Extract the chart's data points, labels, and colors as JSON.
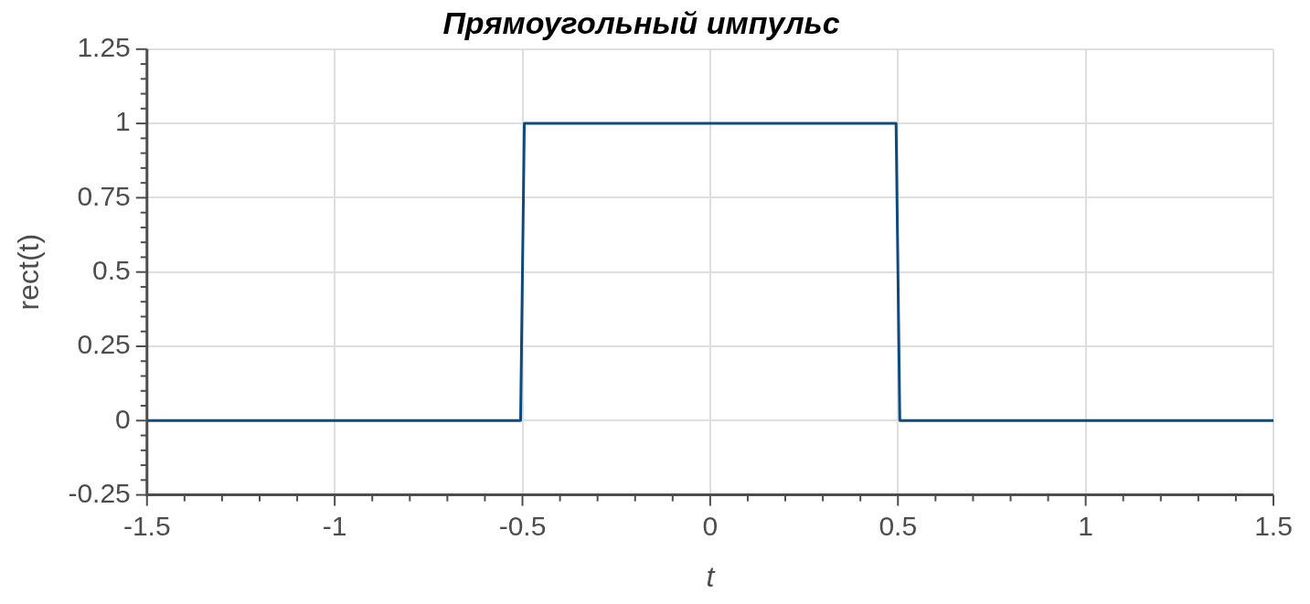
{
  "chart_data": {
    "type": "line",
    "title": "Прямоугольный импульс",
    "xlabel": "t",
    "ylabel": "rect(t)",
    "x": [
      -1.5,
      -0.505,
      -0.495,
      0.495,
      0.505,
      1.5
    ],
    "series": [
      {
        "color": "#0e4a7e",
        "values": [
          0,
          0,
          1,
          1,
          0,
          0
        ]
      }
    ],
    "xlim": [
      -1.5,
      1.5
    ],
    "ylim": [
      -0.25,
      1.25
    ],
    "xticks": [
      -1.5,
      {
        "value": -1.4,
        "label": null
      },
      {
        "value": -1.3,
        "label": null
      },
      {
        "value": -1.2,
        "label": null
      },
      {
        "value": -1.1,
        "label": null
      },
      -1,
      {
        "value": -0.9,
        "label": null
      },
      {
        "value": -0.8,
        "label": null
      },
      {
        "value": -0.7,
        "label": null
      },
      {
        "value": -0.6,
        "label": null
      },
      -0.5,
      {
        "value": -0.4,
        "label": null
      },
      {
        "value": -0.3,
        "label": null
      },
      {
        "value": -0.2,
        "label": null
      },
      {
        "value": -0.1,
        "label": null
      },
      0,
      {
        "value": 0.1,
        "label": null
      },
      {
        "value": 0.2,
        "label": null
      },
      {
        "value": 0.3,
        "label": null
      },
      {
        "value": 0.4,
        "label": null
      },
      0.5,
      {
        "value": 0.6,
        "label": null
      },
      {
        "value": 0.7,
        "label": null
      },
      {
        "value": 0.8,
        "label": null
      },
      {
        "value": 0.9,
        "label": null
      },
      1,
      {
        "value": 1.1,
        "label": null
      },
      {
        "value": 1.2,
        "label": null
      },
      {
        "value": 1.3,
        "label": null
      },
      {
        "value": 1.4,
        "label": null
      },
      1.5
    ],
    "yticks": [
      -0.25,
      {
        "value": -0.2,
        "label": null
      },
      {
        "value": -0.15,
        "label": null
      },
      {
        "value": -0.1,
        "label": null
      },
      {
        "value": -0.05,
        "label": null
      },
      0,
      {
        "value": 0.05,
        "label": null
      },
      {
        "value": 0.1,
        "label": null
      },
      {
        "value": 0.15,
        "label": null
      },
      {
        "value": 0.2,
        "label": null
      },
      0.25,
      {
        "value": 0.3,
        "label": null
      },
      {
        "value": 0.35,
        "label": null
      },
      {
        "value": 0.4,
        "label": null
      },
      {
        "value": 0.45,
        "label": null
      },
      0.5,
      {
        "value": 0.55,
        "label": null
      },
      {
        "value": 0.6,
        "label": null
      },
      {
        "value": 0.65,
        "label": null
      },
      {
        "value": 0.7,
        "label": null
      },
      0.75,
      {
        "value": 0.8,
        "label": null
      },
      {
        "value": 0.85,
        "label": null
      },
      {
        "value": 0.9,
        "label": null
      },
      {
        "value": 0.95,
        "label": null
      },
      1,
      {
        "value": 1.05,
        "label": null
      },
      {
        "value": 1.1,
        "label": null
      },
      {
        "value": 1.15,
        "label": null
      },
      {
        "value": 1.2,
        "label": null
      },
      1.25
    ],
    "grid": true,
    "legend": false,
    "marker": "none",
    "line_style": "solid"
  }
}
